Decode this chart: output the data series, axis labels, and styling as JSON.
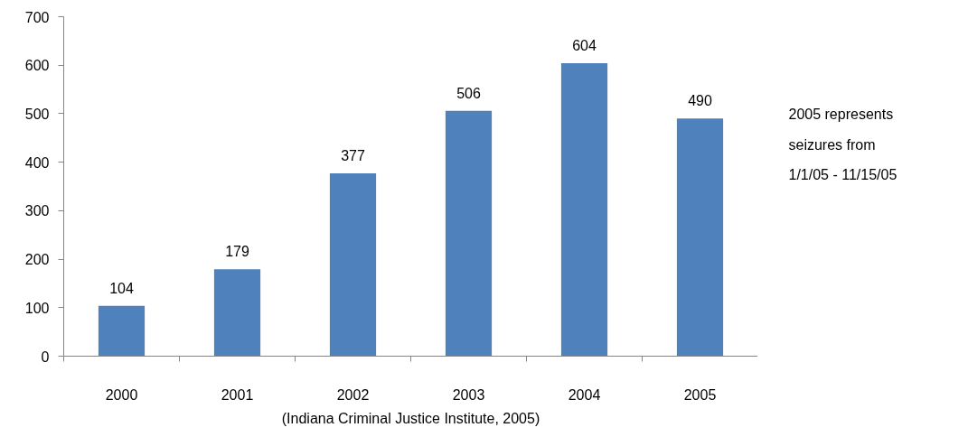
{
  "chart_data": {
    "type": "bar",
    "categories": [
      "2000",
      "2001",
      "2002",
      "2003",
      "2004",
      "2005"
    ],
    "values": [
      104,
      179,
      377,
      506,
      604,
      490
    ],
    "color": "#4f81bd",
    "ylim": [
      0,
      700
    ],
    "yticks": [
      0,
      100,
      200,
      300,
      400,
      500,
      600,
      700
    ],
    "data_labels": true,
    "grid": false,
    "annotations": [
      "2005 represents\nseizures from\n1/1/05 - 11/15/05",
      "(Indiana Criminal Justice Institute, 2005)"
    ]
  }
}
